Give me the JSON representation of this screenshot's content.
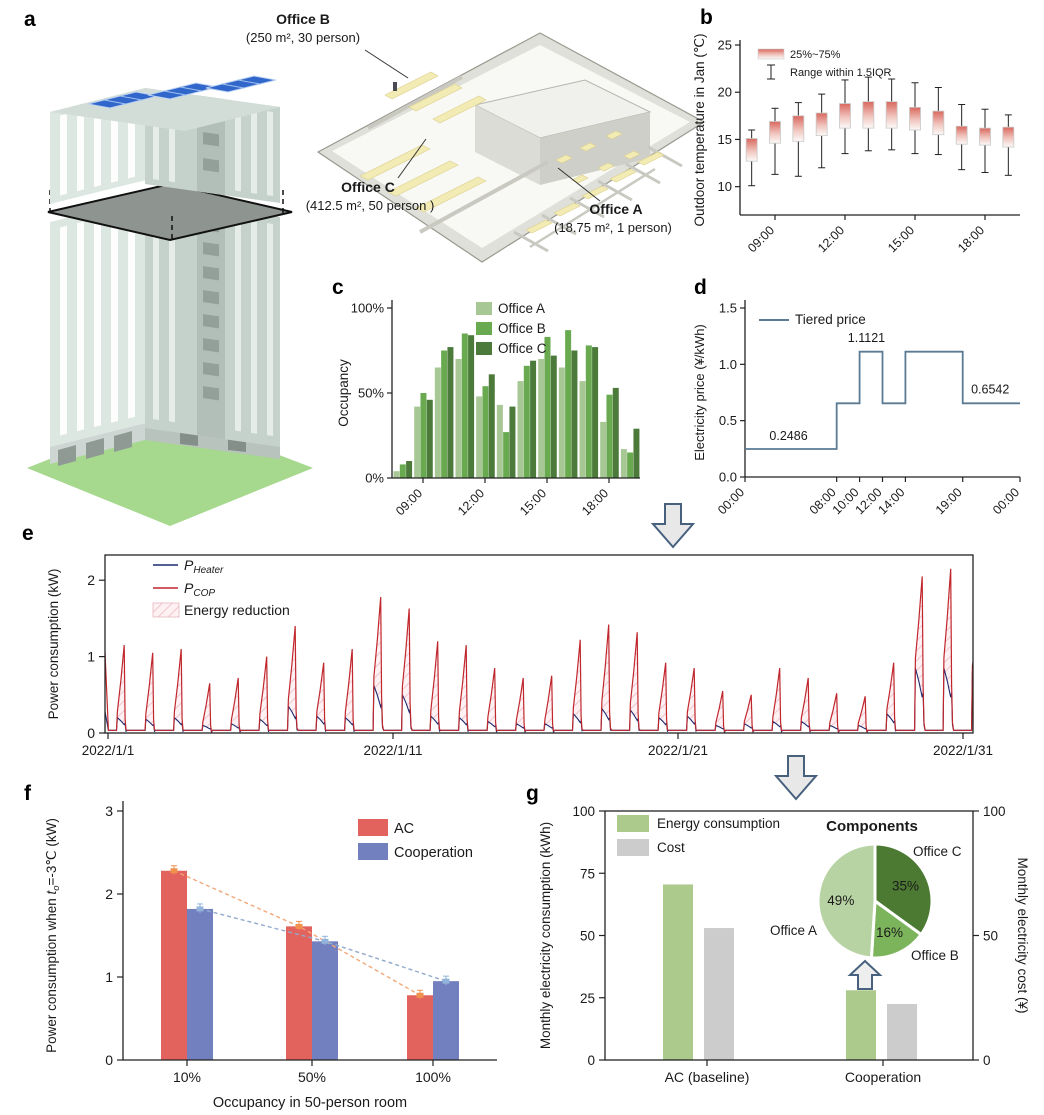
{
  "figure": {
    "panel_letters": {
      "a": "a",
      "b": "b",
      "c": "c",
      "d": "d",
      "e": "e",
      "f": "f",
      "g": "g"
    }
  },
  "panel_a": {
    "office_b": {
      "name": "Office B",
      "detail": "(250 m², 30 person)"
    },
    "office_c": {
      "name": "Office C",
      "detail": "(412.5 m², 50 person )"
    },
    "office_a": {
      "name": "Office A",
      "detail": "(18.75 m², 1 person)"
    }
  },
  "chart_data": [
    {
      "panel": "b",
      "type": "boxplot",
      "ylabel": "Outdoor temperature in Jan (℃)",
      "ylim": [
        7,
        25
      ],
      "yticks": [
        10,
        15,
        20,
        25
      ],
      "xtick_indices": [
        1,
        4,
        7,
        10
      ],
      "xtick_labels": [
        "09:00",
        "12:00",
        "15:00",
        "18:00"
      ],
      "legend": [
        {
          "label": "25%~75%",
          "swatch": "gradient-box"
        },
        {
          "label": "Range within 1.5IQR",
          "swatch": "whisker"
        }
      ],
      "box_fill_top": "#d9685e",
      "boxes": [
        {
          "whisker_low": 10.1,
          "q1": 12.7,
          "q3": 15.1,
          "whisker_high": 16.0
        },
        {
          "whisker_low": 11.3,
          "q1": 14.6,
          "q3": 16.9,
          "whisker_high": 18.3
        },
        {
          "whisker_low": 11.1,
          "q1": 14.8,
          "q3": 17.5,
          "whisker_high": 18.9
        },
        {
          "whisker_low": 12.0,
          "q1": 15.4,
          "q3": 17.8,
          "whisker_high": 19.8
        },
        {
          "whisker_low": 13.5,
          "q1": 16.2,
          "q3": 18.8,
          "whisker_high": 21.3
        },
        {
          "whisker_low": 13.8,
          "q1": 16.2,
          "q3": 19.0,
          "whisker_high": 21.6
        },
        {
          "whisker_low": 13.9,
          "q1": 16.2,
          "q3": 19.0,
          "whisker_high": 21.4
        },
        {
          "whisker_low": 13.5,
          "q1": 16.0,
          "q3": 18.4,
          "whisker_high": 21.0
        },
        {
          "whisker_low": 13.4,
          "q1": 15.5,
          "q3": 18.0,
          "whisker_high": 20.5
        },
        {
          "whisker_low": 11.8,
          "q1": 14.5,
          "q3": 16.4,
          "whisker_high": 18.7
        },
        {
          "whisker_low": 11.5,
          "q1": 14.4,
          "q3": 16.2,
          "whisker_high": 18.2
        },
        {
          "whisker_low": 11.2,
          "q1": 14.2,
          "q3": 16.3,
          "whisker_high": 17.6
        }
      ]
    },
    {
      "panel": "c",
      "type": "bar",
      "ylabel": "Occupancy",
      "ylim": [
        0,
        100
      ],
      "ytick_values": [
        0,
        50,
        100
      ],
      "ytick_labels": [
        "0%",
        "50%",
        "100%"
      ],
      "xtick_indices": [
        1,
        4,
        7,
        10
      ],
      "xtick_labels": [
        "09:00",
        "12:00",
        "15:00",
        "18:00"
      ],
      "series": [
        {
          "name": "Office A",
          "color": "#a7c795",
          "values": [
            4,
            42,
            65,
            70,
            48,
            43,
            57,
            70,
            65,
            57,
            33,
            17
          ]
        },
        {
          "name": "Office B",
          "color": "#69aa51",
          "values": [
            8,
            50,
            75,
            85,
            54,
            27,
            66,
            83,
            87,
            78,
            49,
            15
          ]
        },
        {
          "name": "Office C",
          "color": "#4b7a3a",
          "values": [
            10,
            46,
            77,
            84,
            61,
            42,
            69,
            72,
            75,
            77,
            53,
            29
          ]
        }
      ]
    },
    {
      "panel": "d",
      "type": "step",
      "ylabel": "Electricity price (¥/kWh)",
      "ylim": [
        0,
        1.5
      ],
      "ytick_values": [
        0,
        0.5,
        1.0,
        1.5
      ],
      "ytick_labels": [
        "0.0",
        "0.5",
        "1.0",
        "1.5"
      ],
      "legend": "Tiered price",
      "line_color": "#5b7b95",
      "xticks": [
        {
          "hour": 0,
          "label": "00:00"
        },
        {
          "hour": 8,
          "label": "08:00"
        },
        {
          "hour": 10,
          "label": "10:00"
        },
        {
          "hour": 12,
          "label": "12:00"
        },
        {
          "hour": 14,
          "label": "14:00"
        },
        {
          "hour": 19,
          "label": "19:00"
        },
        {
          "hour": 24,
          "label": "00:00"
        }
      ],
      "segments": [
        {
          "from_hour": 0,
          "to_hour": 8,
          "price": 0.2486
        },
        {
          "from_hour": 8,
          "to_hour": 10,
          "price": 0.6542
        },
        {
          "from_hour": 10,
          "to_hour": 12,
          "price": 1.1121
        },
        {
          "from_hour": 12,
          "to_hour": 14,
          "price": 0.6542
        },
        {
          "from_hour": 14,
          "to_hour": 19,
          "price": 1.1121
        },
        {
          "from_hour": 19,
          "to_hour": 24,
          "price": 0.6542
        }
      ],
      "annotations": [
        {
          "text": "0.2486",
          "hour": 3.8,
          "value": 0.33
        },
        {
          "text": "1.1121",
          "hour": 10.6,
          "value": 1.2
        },
        {
          "text": "0.6542",
          "hour": 21.4,
          "value": 0.74
        }
      ]
    },
    {
      "panel": "e",
      "type": "line-area",
      "ylabel": "Power consumption (kW)",
      "ylim": [
        0,
        2.33
      ],
      "yticks": [
        0,
        1,
        2
      ],
      "xticks": [
        {
          "day": 1,
          "label": "2022/1/1"
        },
        {
          "day": 11,
          "label": "2022/1/11"
        },
        {
          "day": 21,
          "label": "2022/1/21"
        },
        {
          "day": 31,
          "label": "2022/1/31"
        }
      ],
      "legend": [
        {
          "series": "P",
          "sub": "Heater",
          "color": "#1b2a70"
        },
        {
          "series": "P",
          "sub": "COP",
          "color": "#c0272d"
        },
        {
          "label": "Energy reduction",
          "swatch": "hatch"
        }
      ],
      "daily_peaks_kw": [
        {
          "cop": 1.15,
          "heater": 0.2
        },
        {
          "cop": 1.05,
          "heater": 0.18
        },
        {
          "cop": 1.1,
          "heater": 0.2
        },
        {
          "cop": 0.65,
          "heater": 0.1
        },
        {
          "cop": 0.72,
          "heater": 0.12
        },
        {
          "cop": 1.0,
          "heater": 0.18
        },
        {
          "cop": 1.4,
          "heater": 0.35
        },
        {
          "cop": 0.92,
          "heater": 0.22
        },
        {
          "cop": 1.1,
          "heater": 0.2
        },
        {
          "cop": 1.78,
          "heater": 0.62
        },
        {
          "cop": 1.63,
          "heater": 0.5
        },
        {
          "cop": 1.2,
          "heater": 0.22
        },
        {
          "cop": 1.15,
          "heater": 0.2
        },
        {
          "cop": 0.85,
          "heater": 0.15
        },
        {
          "cop": 0.72,
          "heater": 0.12
        },
        {
          "cop": 0.75,
          "heater": 0.12
        },
        {
          "cop": 1.22,
          "heater": 0.25
        },
        {
          "cop": 1.42,
          "heater": 0.32
        },
        {
          "cop": 1.32,
          "heater": 0.3
        },
        {
          "cop": 0.92,
          "heater": 0.2
        },
        {
          "cop": 0.85,
          "heater": 0.22
        },
        {
          "cop": 0.55,
          "heater": 0.1
        },
        {
          "cop": 0.5,
          "heater": 0.12
        },
        {
          "cop": 0.85,
          "heater": 0.15
        },
        {
          "cop": 0.72,
          "heater": 0.15
        },
        {
          "cop": 0.52,
          "heater": 0.1
        },
        {
          "cop": 0.48,
          "heater": 0.1
        },
        {
          "cop": 0.92,
          "heater": 0.25
        },
        {
          "cop": 2.05,
          "heater": 0.85
        },
        {
          "cop": 2.15,
          "heater": 0.85
        },
        {
          "cop": 1.45,
          "heater": 0.8
        }
      ]
    },
    {
      "panel": "f",
      "type": "grouped-bar",
      "ylabel_parts": {
        "prefix": "Power consumption when ",
        "var": "t",
        "sub": "o",
        "suffix": "=-3℃ (kW)"
      },
      "xlabel": "Occupancy in 50-person room",
      "ylim": [
        0,
        3
      ],
      "yticks": [
        0,
        1,
        2,
        3
      ],
      "categories": [
        "10%",
        "50%",
        "100%"
      ],
      "series": [
        {
          "name": "AC",
          "color": "#e2635e",
          "marker_color": "#f0914e",
          "trend_color": "#f2a878",
          "values": [
            2.28,
            1.61,
            0.78
          ]
        },
        {
          "name": "Cooperation",
          "color": "#7280bf",
          "marker_color": "#93b3da",
          "trend_color": "#92a9cd",
          "values": [
            1.82,
            1.43,
            0.95
          ]
        }
      ]
    },
    {
      "panel": "g",
      "type": "dual-axis-bar-with-pie",
      "ylabel_left": "Monthly electricity consumption (kWh)",
      "ylabel_right": "Monthly electricity cost (¥)",
      "ylim": [
        0,
        100
      ],
      "yticks_left": [
        0,
        25,
        50,
        75,
        100
      ],
      "yticks_right": [
        0,
        50,
        100
      ],
      "categories": [
        "AC (baseline)",
        "Cooperation"
      ],
      "series": [
        {
          "name": "Energy consumption",
          "color": "#adca8d",
          "values": [
            70.5,
            28
          ]
        },
        {
          "name": "Cost",
          "color": "#cccccc",
          "values": [
            53,
            22.5
          ]
        }
      ],
      "pie": {
        "title": "Components",
        "start": "top",
        "direction": "clockwise",
        "slices": [
          {
            "label": "Office C",
            "pct": 35,
            "color": "#4c7a33"
          },
          {
            "label": "Office B",
            "pct": 16,
            "color": "#7cb45c"
          },
          {
            "label": "Office A",
            "pct": 49,
            "color": "#b8d3a3"
          }
        ]
      }
    }
  ]
}
